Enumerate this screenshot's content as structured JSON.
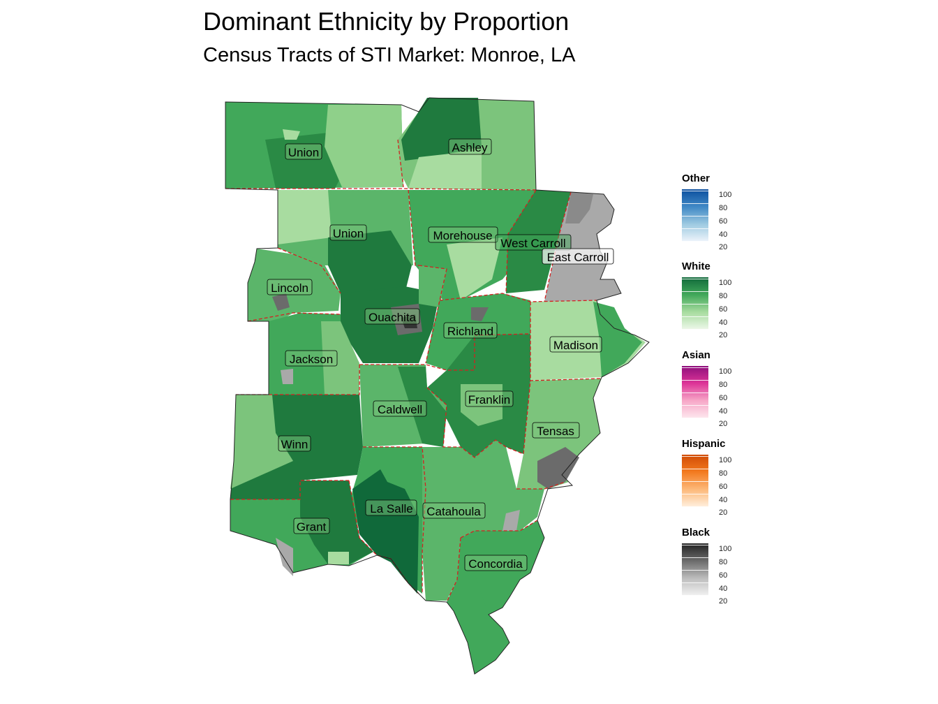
{
  "title": "Dominant Ethnicity by Proportion",
  "subtitle": "Census Tracts of STI Market: Monroe, LA",
  "county_labels": [
    "Union",
    "Ashley",
    "Union",
    "Morehouse",
    "West Carroll",
    "East Carroll",
    "Lincoln",
    "Ouachita",
    "Richland",
    "Madison",
    "Jackson",
    "Franklin",
    "Caldwell",
    "Tensas",
    "Winn",
    "La Salle",
    "Catahoula",
    "Grant",
    "Concordia"
  ],
  "legends": [
    {
      "title": "Other",
      "ticks": [
        "100",
        "80",
        "60",
        "40",
        "20"
      ],
      "color_low": "#eef4fb",
      "color_high": "#0c4f9e"
    },
    {
      "title": "White",
      "ticks": [
        "100",
        "80",
        "60",
        "40",
        "20"
      ],
      "color_low": "#eef8ea",
      "color_high": "#10693a"
    },
    {
      "title": "Asian",
      "ticks": [
        "100",
        "80",
        "60",
        "40",
        "20"
      ],
      "color_low": "#fde8ee",
      "color_high": "#8e0f7c"
    },
    {
      "title": "Hispanic",
      "ticks": [
        "100",
        "80",
        "60",
        "40",
        "20"
      ],
      "color_low": "#fff0df",
      "color_high": "#d04a04"
    },
    {
      "title": "Black",
      "ticks": [
        "100",
        "80",
        "60",
        "40",
        "20"
      ],
      "color_low": "#f2f2f2",
      "color_high": "#222222"
    }
  ],
  "colors": {
    "white_dark": "#1f7a3e",
    "white_mid": "#41a85a",
    "white_light": "#7cc47c",
    "white_pale": "#a8dca0",
    "black_light": "#a9a9a9",
    "black_mid": "#6b6b6b",
    "black_dark": "#333333",
    "county_border": "#d42020"
  }
}
